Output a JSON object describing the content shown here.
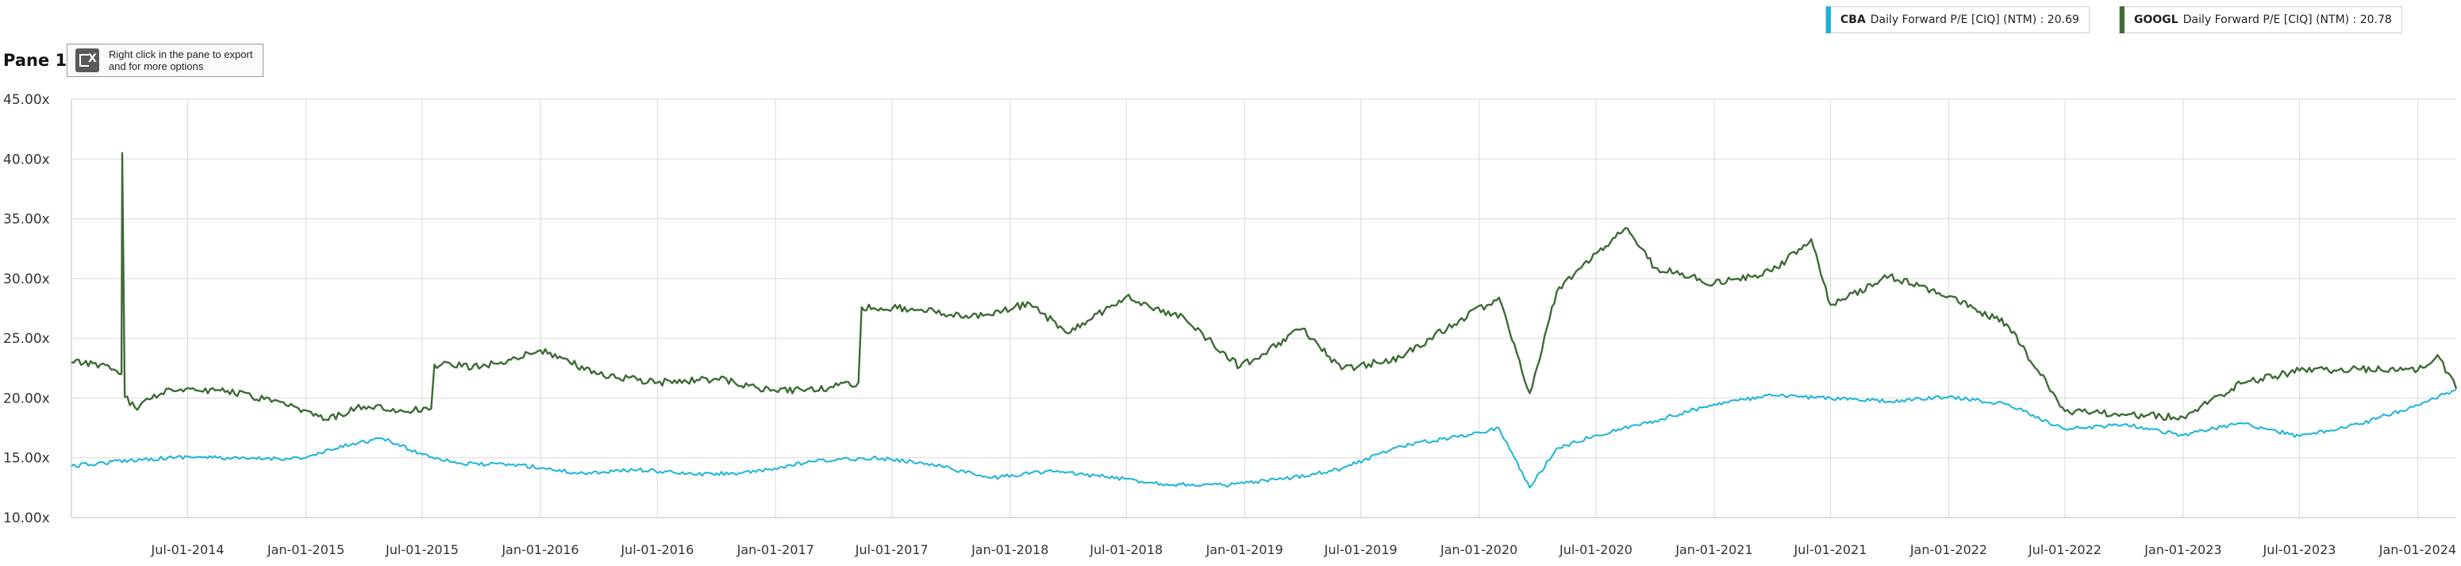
{
  "pane": {
    "title": "Pane 1",
    "export_hint": "Right click in the pane to export and for more options",
    "export_icon": "excel-export-icon"
  },
  "legend": [
    {
      "ticker": "CBA",
      "label": "Daily Forward P/E [CIQ] (NTM) : 20.69",
      "color": "#1ab4d8"
    },
    {
      "ticker": "GOOGL",
      "label": "Daily Forward P/E [CIQ] (NTM) : 20.78",
      "color": "#3d6b35"
    }
  ],
  "chart_data": {
    "type": "line",
    "y_ticks": [
      "45.00x",
      "40.00x",
      "35.00x",
      "30.00x",
      "25.00x",
      "20.00x",
      "15.00x",
      "10.00x"
    ],
    "ylim": [
      10,
      45
    ],
    "x_ticks": [
      "Jul-01-2014",
      "Jan-01-2015",
      "Jul-01-2015",
      "Jan-01-2016",
      "Jul-01-2016",
      "Jan-01-2017",
      "Jul-01-2017",
      "Jan-01-2018",
      "Jul-01-2018",
      "Jan-01-2019",
      "Jul-01-2019",
      "Jan-01-2020",
      "Jul-01-2020",
      "Jan-01-2021",
      "Jul-01-2021",
      "Jan-01-2022",
      "Jul-01-2022",
      "Jan-01-2023",
      "Jul-01-2023",
      "Jan-01-2024"
    ],
    "xlim": [
      "2014-01-01",
      "2024-03-01"
    ],
    "grid": true,
    "series": [
      {
        "name": "CBA Daily Forward P/E [CIQ] (NTM)",
        "color": "#1ab4d8",
        "x": [
          "2014-01-01",
          "2014-04-01",
          "2014-07-01",
          "2014-10-01",
          "2015-01-01",
          "2015-03-15",
          "2015-05-01",
          "2015-07-01",
          "2015-09-01",
          "2015-12-01",
          "2016-03-01",
          "2016-06-01",
          "2016-09-01",
          "2016-12-01",
          "2017-03-01",
          "2017-06-01",
          "2017-09-01",
          "2017-12-01",
          "2018-03-01",
          "2018-06-01",
          "2018-09-01",
          "2018-12-01",
          "2019-03-01",
          "2019-06-01",
          "2019-09-01",
          "2019-12-01",
          "2020-02-01",
          "2020-03-20",
          "2020-05-01",
          "2020-07-01",
          "2020-10-01",
          "2021-01-01",
          "2021-04-01",
          "2021-07-01",
          "2021-10-01",
          "2022-01-01",
          "2022-04-01",
          "2022-07-01",
          "2022-10-01",
          "2023-01-01",
          "2023-04-01",
          "2023-07-01",
          "2023-10-01",
          "2024-01-01",
          "2024-03-01"
        ],
        "values": [
          14.3,
          14.8,
          15.1,
          14.9,
          15.0,
          16.2,
          16.6,
          15.3,
          14.5,
          14.4,
          13.7,
          14.0,
          13.6,
          13.8,
          14.7,
          15.0,
          14.5,
          13.3,
          13.9,
          13.4,
          12.8,
          12.7,
          13.2,
          14.1,
          16.0,
          16.8,
          17.5,
          12.5,
          15.8,
          16.9,
          18.1,
          19.5,
          20.2,
          20.0,
          19.7,
          20.1,
          19.5,
          17.4,
          17.8,
          16.9,
          17.9,
          16.8,
          17.8,
          19.4,
          20.69
        ]
      },
      {
        "name": "GOOGL Daily Forward P/E [CIQ] (NTM)",
        "color": "#3d6b35",
        "x": [
          "2014-01-01",
          "2014-02-15",
          "2014-03-20",
          "2014-03-21",
          "2014-03-25",
          "2014-04-10",
          "2014-06-01",
          "2014-09-01",
          "2014-12-01",
          "2015-02-01",
          "2015-04-01",
          "2015-06-01",
          "2015-07-15",
          "2015-07-20",
          "2015-10-01",
          "2016-01-01",
          "2016-04-01",
          "2016-07-01",
          "2016-10-01",
          "2017-01-01",
          "2017-04-01",
          "2017-05-10",
          "2017-05-15",
          "2017-08-01",
          "2017-11-01",
          "2018-02-01",
          "2018-04-01",
          "2018-07-01",
          "2018-10-01",
          "2018-12-25",
          "2019-04-01",
          "2019-06-01",
          "2019-09-01",
          "2019-12-01",
          "2020-02-01",
          "2020-03-20",
          "2020-05-01",
          "2020-07-01",
          "2020-08-15",
          "2020-10-01",
          "2021-01-01",
          "2021-04-01",
          "2021-06-01",
          "2021-07-01",
          "2021-10-01",
          "2022-01-01",
          "2022-04-01",
          "2022-07-01",
          "2022-10-01",
          "2023-01-01",
          "2023-04-01",
          "2023-07-01",
          "2023-10-01",
          "2024-01-01",
          "2024-02-01",
          "2024-03-01"
        ],
        "values": [
          23.0,
          22.8,
          22.0,
          40.5,
          20.1,
          19.2,
          20.8,
          20.6,
          19.4,
          18.2,
          19.3,
          18.9,
          19.1,
          22.8,
          22.6,
          24.0,
          22.0,
          21.3,
          21.6,
          20.6,
          20.9,
          21.3,
          27.6,
          27.5,
          26.8,
          27.9,
          25.4,
          28.5,
          26.6,
          22.6,
          25.8,
          22.4,
          23.4,
          26.5,
          28.4,
          20.4,
          28.9,
          32.1,
          34.2,
          30.9,
          29.6,
          30.6,
          33.3,
          27.8,
          30.2,
          28.5,
          26.2,
          18.9,
          18.6,
          18.4,
          21.2,
          22.3,
          22.4,
          22.3,
          23.6,
          20.78
        ]
      }
    ]
  }
}
